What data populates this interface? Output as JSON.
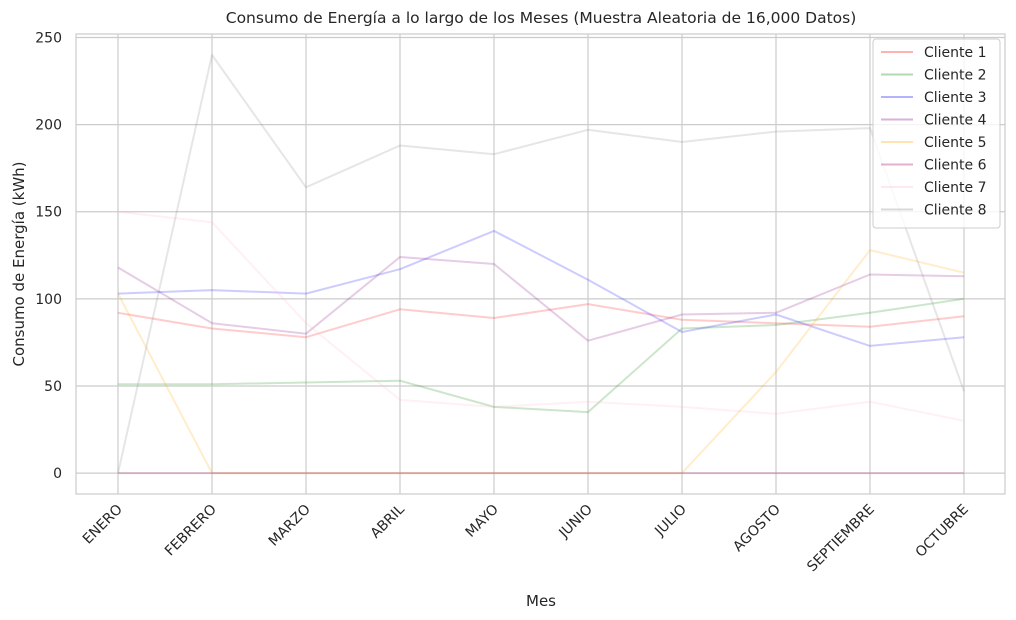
{
  "chart_data": {
    "type": "line",
    "title": "Consumo de Energía a lo largo de los Meses (Muestra Aleatoria de 16,000 Datos)",
    "xlabel": "Mes",
    "ylabel": "Consumo de Energía (kWh)",
    "categories": [
      "ENERO",
      "FEBRERO",
      "MARZO",
      "ABRIL",
      "MAYO",
      "JUNIO",
      "JULIO",
      "AGOSTO",
      "SEPTIEMBRE",
      "OCTUBRE"
    ],
    "yticks": [
      0,
      50,
      100,
      150,
      200,
      250
    ],
    "ylim": [
      -12,
      252
    ],
    "grid": true,
    "legend_position": "top-right",
    "series": [
      {
        "name": "Cliente 1",
        "color": "#ff0000",
        "values": [
          92,
          83,
          78,
          94,
          89,
          97,
          88,
          86,
          84,
          90
        ]
      },
      {
        "name": "Cliente 2",
        "color": "#008000",
        "values": [
          51,
          51,
          52,
          53,
          38,
          35,
          83,
          85,
          92,
          100
        ]
      },
      {
        "name": "Cliente 3",
        "color": "#0000ff",
        "values": [
          103,
          105,
          103,
          117,
          139,
          111,
          81,
          91,
          73,
          78
        ]
      },
      {
        "name": "Cliente 4",
        "color": "#800080",
        "values": [
          118,
          86,
          80,
          124,
          120,
          76,
          91,
          92,
          114,
          113
        ]
      },
      {
        "name": "Cliente 5",
        "color": "#ffa500",
        "values": [
          103,
          0,
          0,
          0,
          0,
          0,
          0,
          58,
          128,
          115
        ]
      },
      {
        "name": "Cliente 6",
        "color": "#a0005a",
        "values": [
          0,
          0,
          0,
          0,
          0,
          0,
          0,
          0,
          0,
          0
        ]
      },
      {
        "name": "Cliente 7",
        "color": "#ffb6c1",
        "values": [
          150,
          144,
          86,
          42,
          38,
          41,
          38,
          34,
          41,
          30
        ]
      },
      {
        "name": "Cliente 8",
        "color": "#808080",
        "values": [
          0,
          240,
          164,
          188,
          183,
          197,
          190,
          196,
          198,
          47
        ]
      }
    ]
  }
}
